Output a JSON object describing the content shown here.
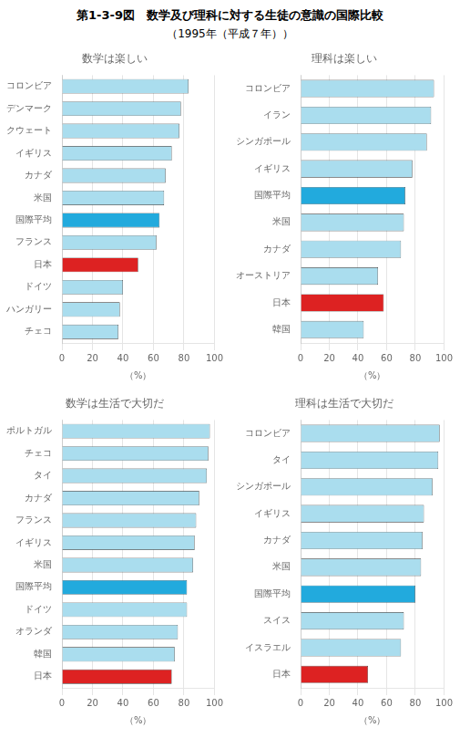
{
  "title": "第1-3-9図　数学及び理科に対する生徒の意識の国際比較",
  "subtitle": "（1995年（平成７年））",
  "chart_data": [
    {
      "type": "bar",
      "orientation": "horizontal",
      "title": "数学は楽しい",
      "categories": [
        "コロンビア",
        "デンマーク",
        "クウェート",
        "イギリス",
        "カナダ",
        "米国",
        "国際平均",
        "フランス",
        "日本",
        "ドイツ",
        "ハンガリー",
        "チェコ"
      ],
      "values": [
        83,
        78,
        77,
        72,
        68,
        67,
        64,
        62,
        50,
        40,
        38,
        37
      ],
      "colors": [
        "#aaddee",
        "#aaddee",
        "#aaddee",
        "#aaddee",
        "#aaddee",
        "#aaddee",
        "#22aadd",
        "#aaddee",
        "#dd2222",
        "#aaddee",
        "#aaddee",
        "#aaddee"
      ],
      "xlabel": "（%）",
      "xlim": [
        0,
        100
      ],
      "xticks": [
        0,
        20,
        40,
        60,
        80,
        100
      ],
      "grid": true
    },
    {
      "type": "bar",
      "orientation": "horizontal",
      "title": "理科は楽しい",
      "categories": [
        "コロンビア",
        "イラン",
        "シンガポール",
        "イギリス",
        "国際平均",
        "米国",
        "カナダ",
        "オーストリア",
        "日本",
        "韓国"
      ],
      "values": [
        93,
        91,
        88,
        78,
        73,
        72,
        70,
        54,
        58,
        44
      ],
      "colors": [
        "#aaddee",
        "#aaddee",
        "#aaddee",
        "#aaddee",
        "#22aadd",
        "#aaddee",
        "#aaddee",
        "#aaddee",
        "#dd2222",
        "#aaddee"
      ],
      "xlabel": "（%）",
      "xlim": [
        0,
        100
      ],
      "xticks": [
        0,
        20,
        40,
        60,
        80,
        100
      ],
      "grid": true
    },
    {
      "type": "bar",
      "orientation": "horizontal",
      "title": "数学は生活で大切だ",
      "categories": [
        "ポルトガル",
        "チェコ",
        "タイ",
        "カナダ",
        "フランス",
        "イギリス",
        "米国",
        "国際平均",
        "ドイツ",
        "オランダ",
        "韓国",
        "日本"
      ],
      "values": [
        97,
        96,
        95,
        90,
        88,
        87,
        86,
        82,
        82,
        76,
        74,
        72
      ],
      "colors": [
        "#aaddee",
        "#aaddee",
        "#aaddee",
        "#aaddee",
        "#aaddee",
        "#aaddee",
        "#aaddee",
        "#22aadd",
        "#aaddee",
        "#aaddee",
        "#aaddee",
        "#dd2222"
      ],
      "xlabel": "（%）",
      "xlim": [
        0,
        100
      ],
      "xticks": [
        0,
        20,
        40,
        60,
        80,
        100
      ],
      "grid": true
    },
    {
      "type": "bar",
      "orientation": "horizontal",
      "title": "理科は生活で大切だ",
      "categories": [
        "コロンビア",
        "タイ",
        "シンガポール",
        "イギリス",
        "カナダ",
        "米国",
        "国際平均",
        "スイス",
        "イスラエル",
        "日本"
      ],
      "values": [
        97,
        96,
        92,
        86,
        85,
        84,
        80,
        72,
        70,
        47
      ],
      "colors": [
        "#aaddee",
        "#aaddee",
        "#aaddee",
        "#aaddee",
        "#aaddee",
        "#aaddee",
        "#22aadd",
        "#aaddee",
        "#aaddee",
        "#dd2222"
      ],
      "xlabel": "（%）",
      "xlim": [
        0,
        100
      ],
      "xticks": [
        0,
        20,
        40,
        60,
        80,
        100
      ],
      "grid": true
    }
  ]
}
